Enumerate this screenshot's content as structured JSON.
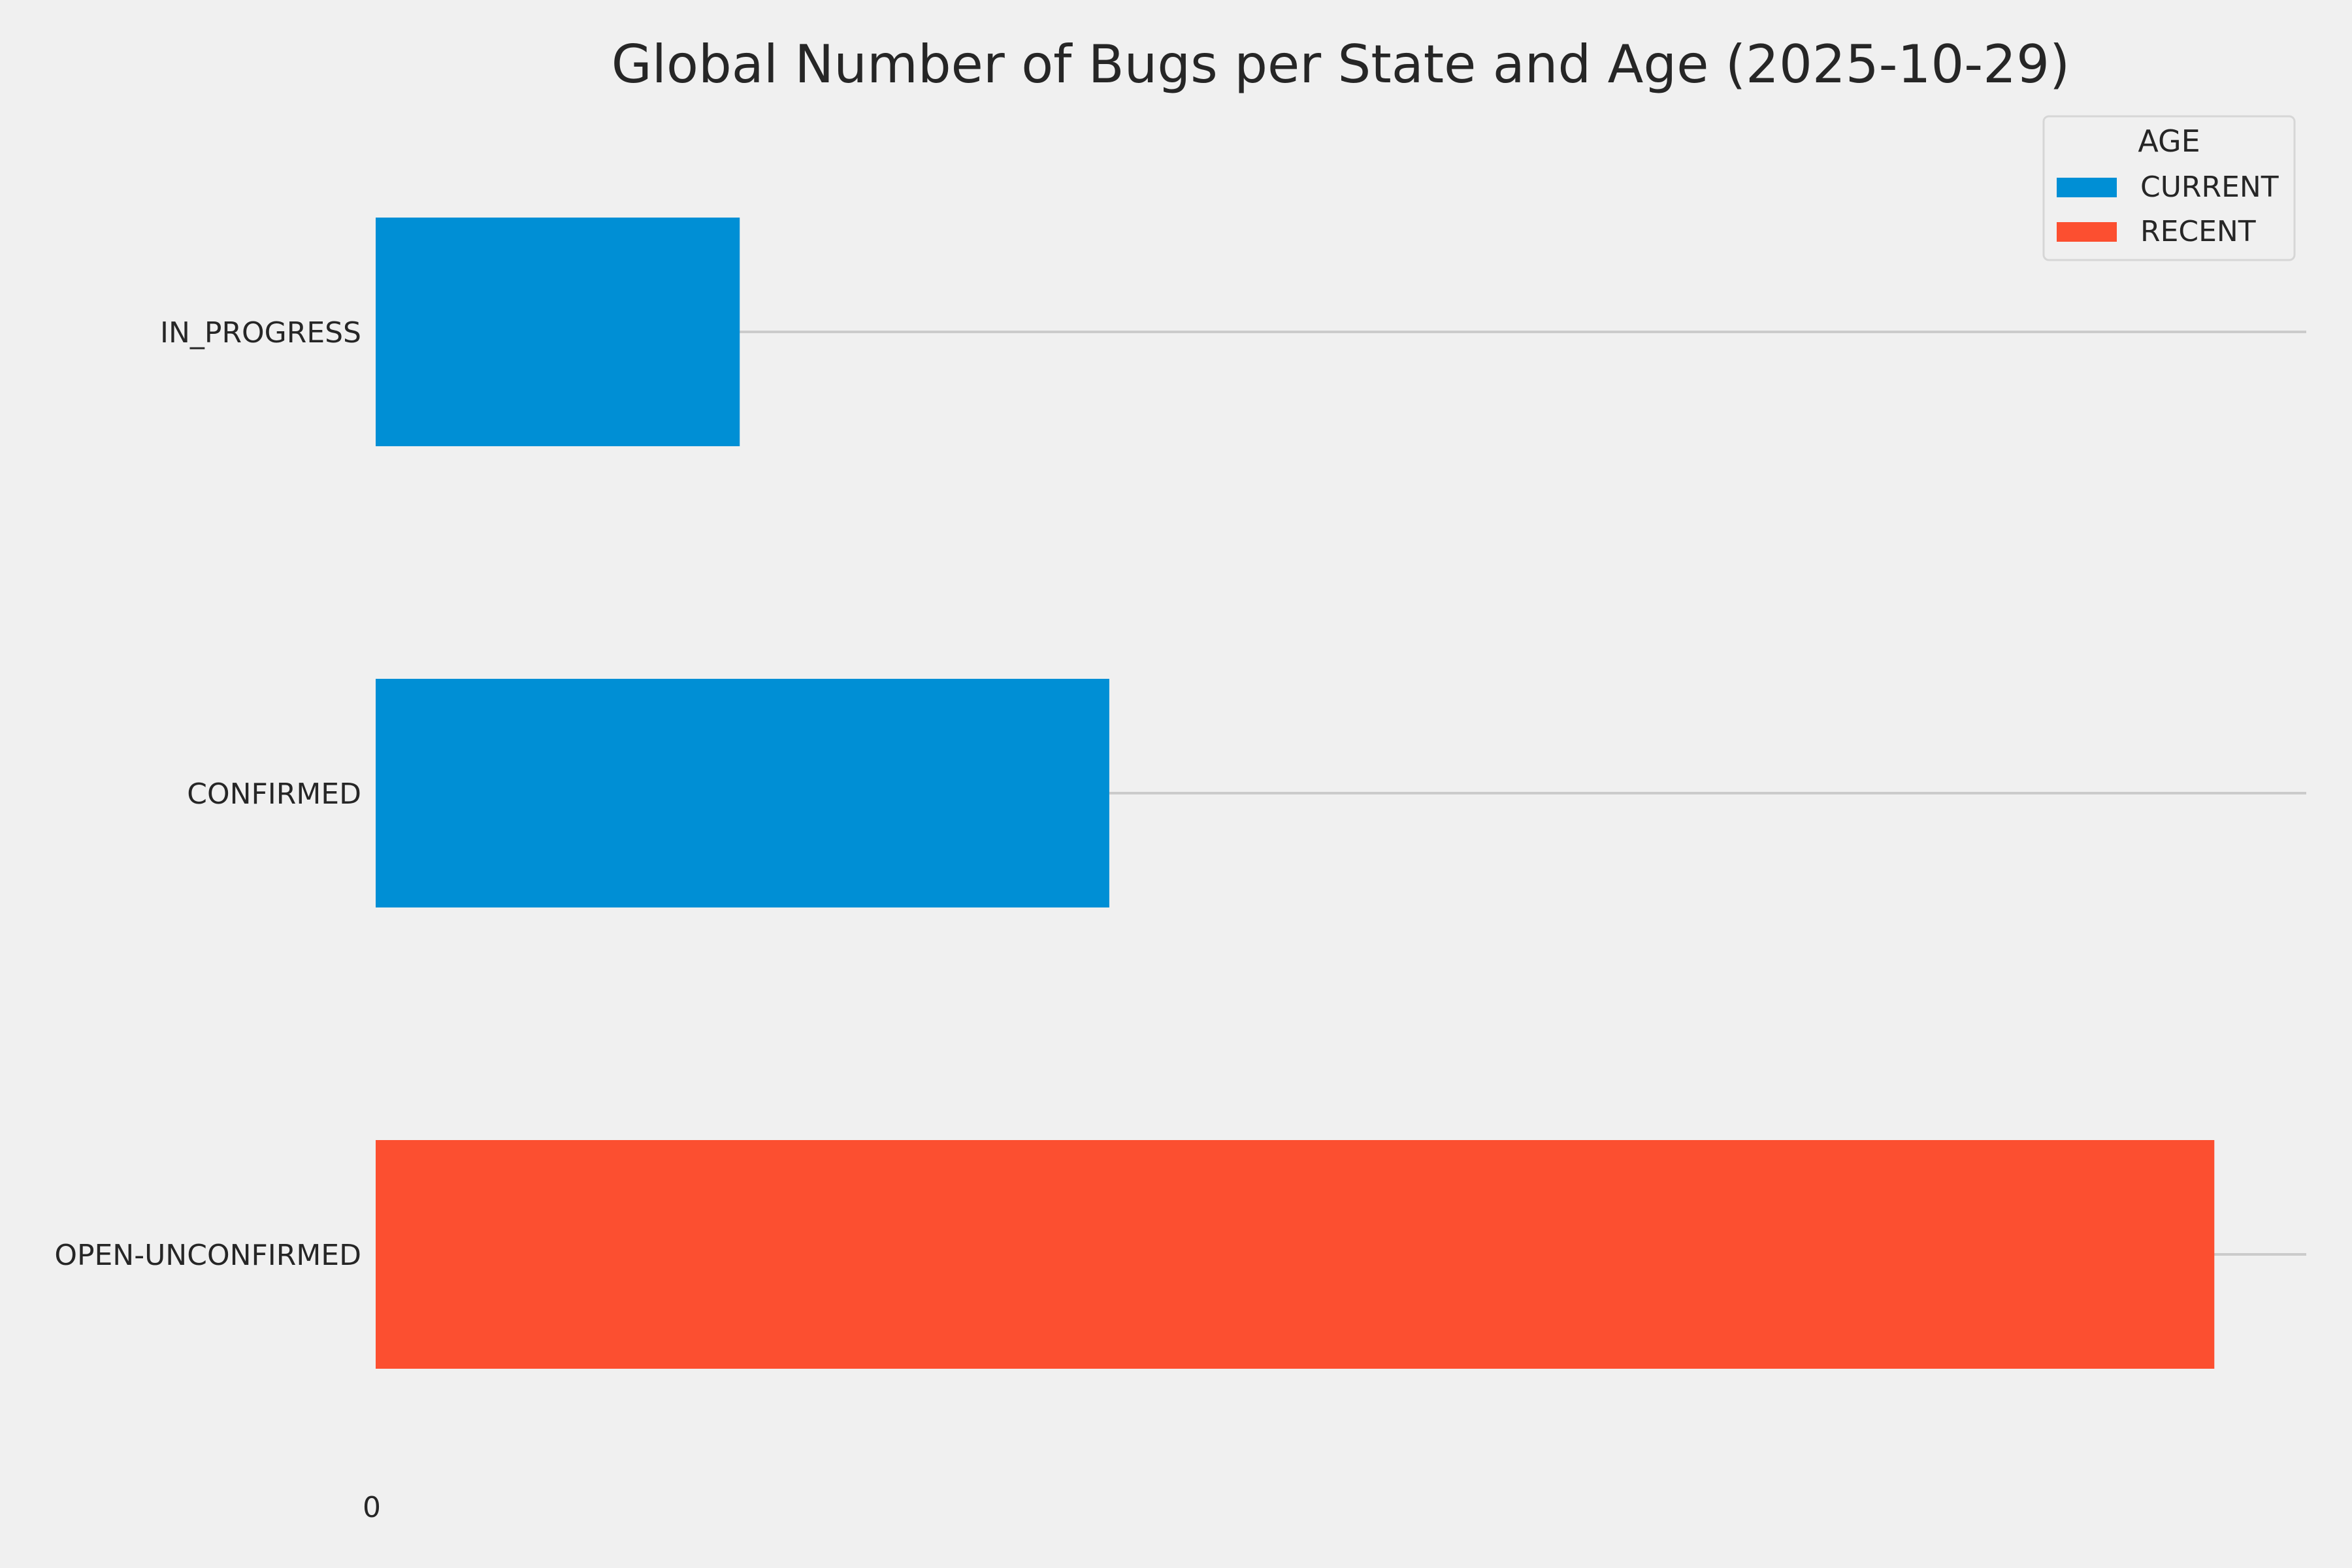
{
  "chart_data": {
    "type": "bar",
    "orientation": "horizontal",
    "title": "Global Number of Bugs per State and Age (2025-10-29)",
    "xlabel": "",
    "ylabel": "",
    "categories": [
      "IN_PROGRESS",
      "CONFIRMED",
      "OPEN-UNCONFIRMED"
    ],
    "x_ticks": [
      "0"
    ],
    "xlim": [
      0,
      1.05
    ],
    "series": [
      {
        "name": "CURRENT",
        "color": "#008fd5",
        "values": [
          0.198,
          0.399,
          0
        ]
      },
      {
        "name": "RECENT",
        "color": "#fc4f30",
        "values": [
          0,
          0,
          1.0
        ]
      }
    ],
    "legend": {
      "title": "AGE",
      "placement": "top-right"
    },
    "grid": true
  }
}
